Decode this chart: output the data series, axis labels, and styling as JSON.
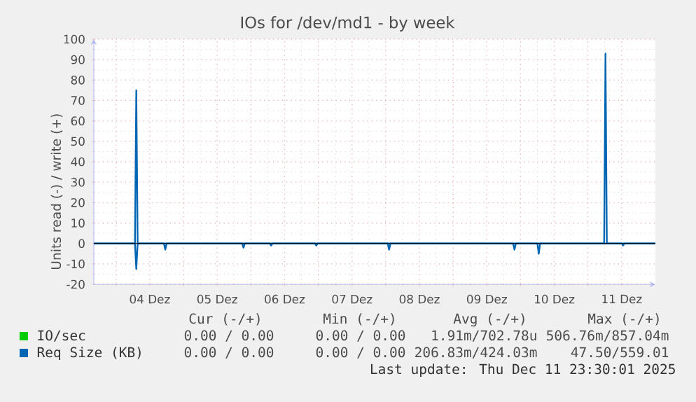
{
  "chart_data": {
    "type": "line",
    "title": "IOs for /dev/md1 - by week",
    "ylabel": "Units read (-) / write (+)",
    "xlim": [
      3.67,
      12.0
    ],
    "ylim": [
      -20,
      100
    ],
    "xticks": [
      {
        "value": 4,
        "label": null
      },
      {
        "value": 4.5,
        "label": "04 Dez"
      },
      {
        "value": 5,
        "label": null
      },
      {
        "value": 5.5,
        "label": "05 Dez"
      },
      {
        "value": 6,
        "label": null
      },
      {
        "value": 6.5,
        "label": "06 Dez"
      },
      {
        "value": 7,
        "label": null
      },
      {
        "value": 7.5,
        "label": "07 Dez"
      },
      {
        "value": 8,
        "label": null
      },
      {
        "value": 8.5,
        "label": "08 Dez"
      },
      {
        "value": 9,
        "label": null
      },
      {
        "value": 9.5,
        "label": "09 Dez"
      },
      {
        "value": 10,
        "label": null
      },
      {
        "value": 10.5,
        "label": "10 Dez"
      },
      {
        "value": 11,
        "label": null
      },
      {
        "value": 11.5,
        "label": "11 Dez"
      }
    ],
    "yticks": [
      -20,
      -10,
      0,
      10,
      20,
      30,
      40,
      50,
      60,
      70,
      80,
      90,
      100
    ],
    "grid": true,
    "legend": "bottom left",
    "marker": "none",
    "line_style": "solid",
    "ref_lines": [
      {
        "axis": "y",
        "value": 0,
        "color": "#000000"
      }
    ],
    "series": [
      {
        "name": "IO/sec",
        "color": "#00cc00",
        "values": [
          null
        ]
      },
      {
        "name": "Req Size (KB)",
        "color": "#0066b3",
        "x": [
          3.67,
          4.28,
          4.3,
          4.32,
          11.24,
          11.26,
          11.28,
          12.0
        ],
        "values": [
          0,
          0,
          75,
          0,
          0,
          93,
          0,
          0
        ]
      },
      {
        "color": "#0066b3",
        "x": [
          3.67,
          4.28,
          4.3,
          4.32,
          4.71,
          4.73,
          4.75,
          5.87,
          5.89,
          5.91,
          6.28,
          6.3,
          6.32,
          6.95,
          6.97,
          6.99,
          8.03,
          8.05,
          8.07,
          9.89,
          9.91,
          9.93,
          10.25,
          10.27,
          10.29,
          11.5,
          11.52,
          11.54,
          12.0
        ],
        "values": [
          0,
          0,
          -12.5,
          0,
          0,
          -3,
          0,
          0,
          -2,
          0,
          0,
          -1,
          0,
          0,
          -1,
          0,
          0,
          -3,
          0,
          0,
          -3,
          0,
          0,
          -5,
          0,
          0,
          -1,
          0,
          0
        ]
      }
    ],
    "annotations": [
      "Cur (-/+)",
      "Min (-/+)",
      "Avg (-/+)",
      "Max (-/+)",
      "0.00 / 0.00",
      "0.00 / 0.00",
      "1.91m/702.78u",
      "506.76m/857.04m",
      "0.00 / 0.00",
      "0.00 / 0.00",
      "206.83m/424.03m",
      "47.50/559.01",
      "Last update: Thu Dec 11 23:30:01 2025"
    ]
  }
}
